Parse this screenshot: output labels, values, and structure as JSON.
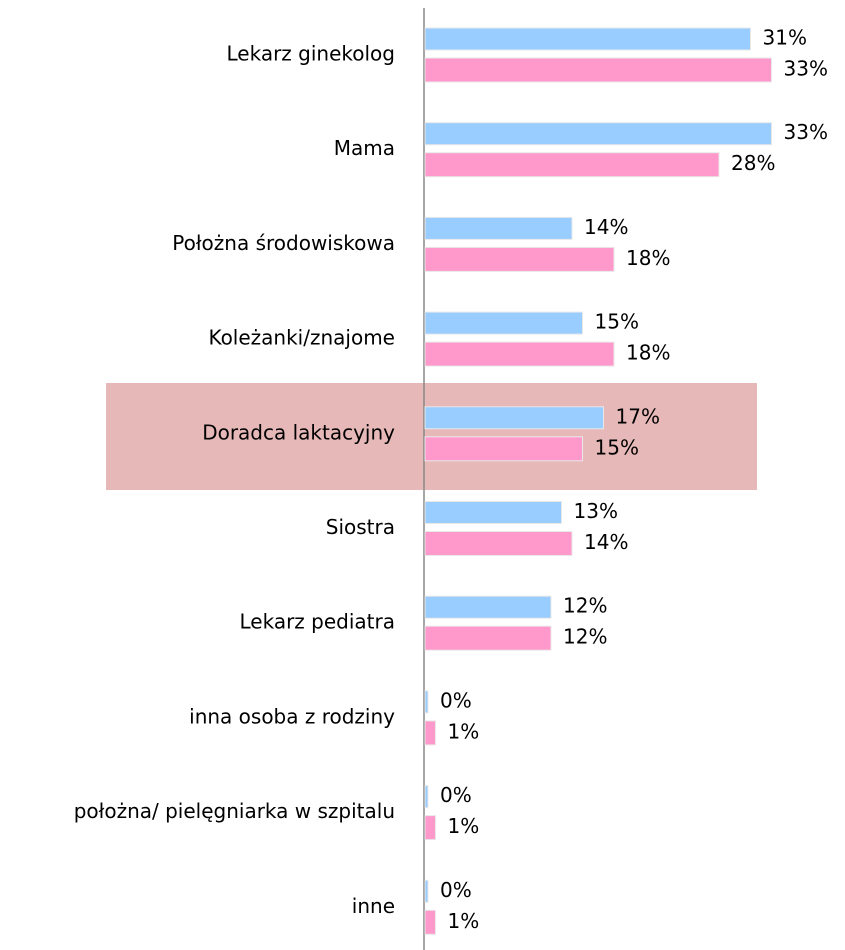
{
  "chart_data": {
    "type": "bar",
    "orientation": "horizontal",
    "categories": [
      "Lekarz ginekolog",
      "Mama",
      "Położna środowiskowa",
      "Koleżanki/znajome",
      "Doradca laktacyjny",
      "Siostra",
      "Lekarz pediatra",
      "inna osoba z rodziny",
      "położna/ pielęgniarka w szpitalu",
      "inne"
    ],
    "series": [
      {
        "color": "#99ccff",
        "values": [
          31,
          33,
          14,
          15,
          17,
          13,
          12,
          0,
          0,
          0
        ],
        "value_labels": [
          "31%",
          "33%",
          "14%",
          "15%",
          "17%",
          "13%",
          "12%",
          "0%",
          "0%",
          "0%"
        ]
      },
      {
        "color": "#ff99cc",
        "values": [
          33,
          28,
          18,
          18,
          15,
          14,
          12,
          1,
          1,
          1
        ],
        "value_labels": [
          "33%",
          "28%",
          "18%",
          "18%",
          "15%",
          "14%",
          "12%",
          "1%",
          "1%",
          "1%"
        ]
      }
    ]
  }
}
